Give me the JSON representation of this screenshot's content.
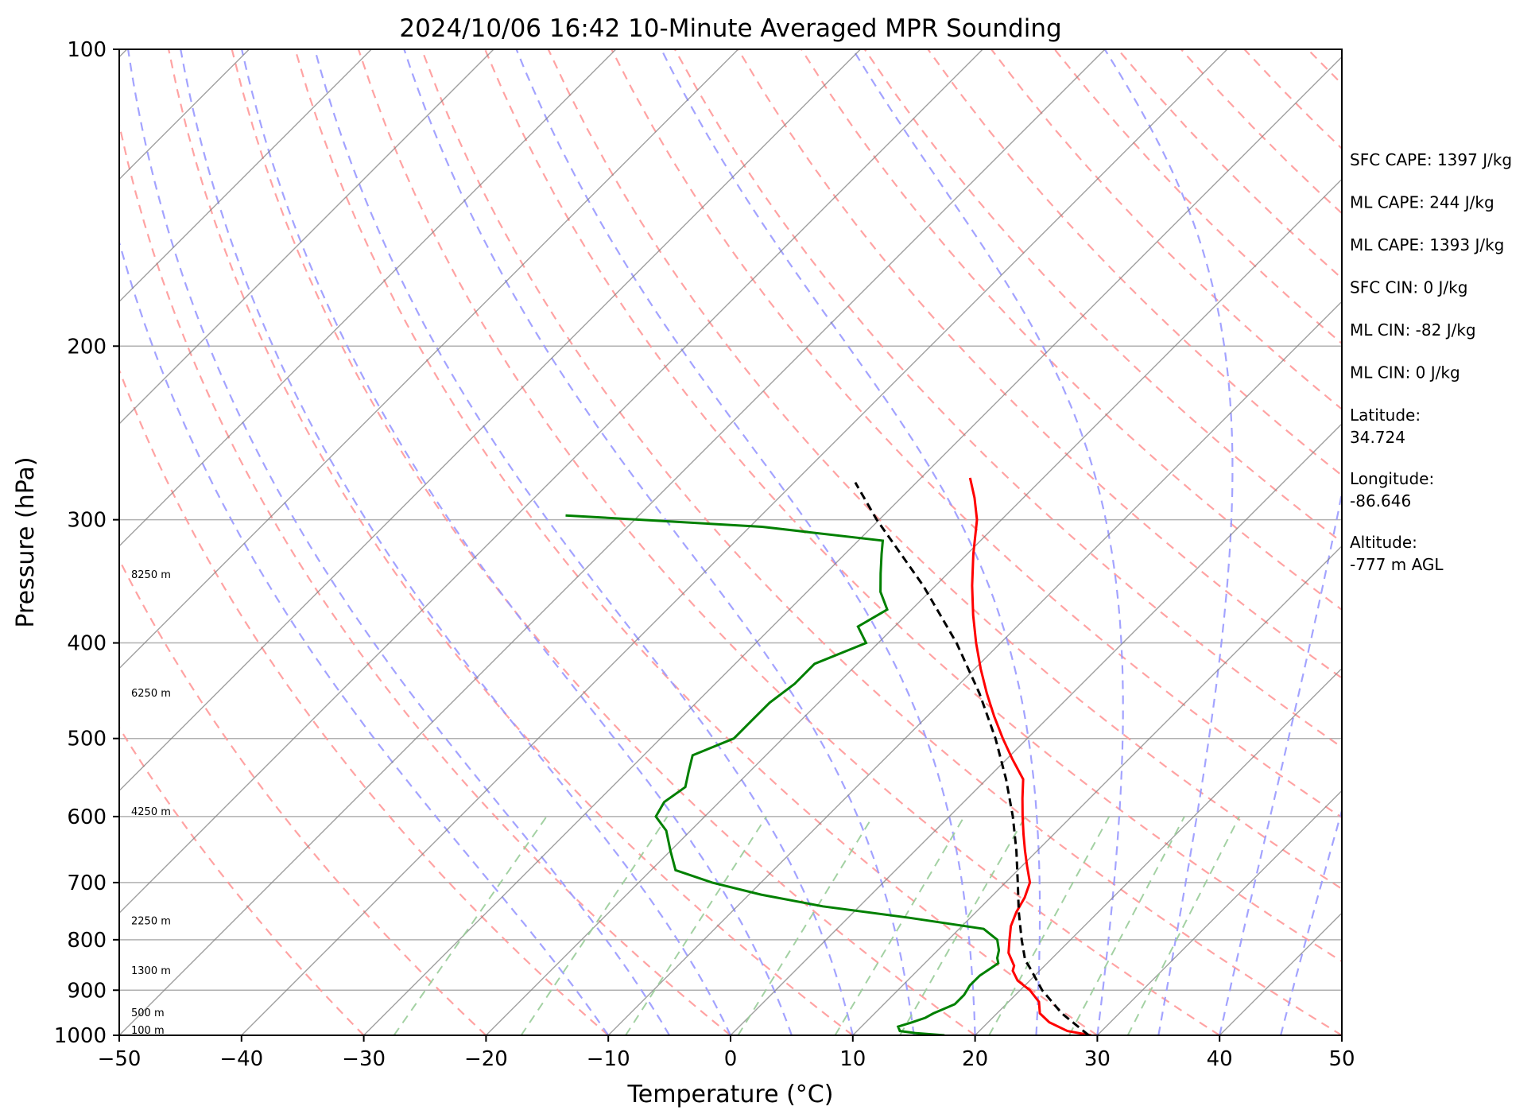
{
  "chart_data": {
    "type": "line",
    "title": "2024/10/06 16:42 10-Minute Averaged MPR Sounding",
    "xlabel": "Temperature (°C)",
    "ylabel": "Pressure (hPa)",
    "xlim": [
      -50,
      50
    ],
    "ylim": [
      1000,
      100
    ],
    "y_scale": "log",
    "x_ticks": [
      -50,
      -40,
      -30,
      -20,
      -10,
      0,
      10,
      20,
      30,
      40,
      50
    ],
    "x_tick_labels": [
      "−50",
      "−40",
      "−30",
      "−20",
      "−10",
      "0",
      "10",
      "20",
      "30",
      "40",
      "50"
    ],
    "y_ticks": [
      1000,
      900,
      800,
      700,
      600,
      500,
      400,
      300,
      200,
      100
    ],
    "y_tick_labels": [
      "1000",
      "900",
      "800",
      "700",
      "600",
      "500",
      "400",
      "300",
      "200",
      "100"
    ],
    "grid": true,
    "skew": "skew-T log-P",
    "colors": {
      "temperature": "#ff0000",
      "dewpoint": "#008000",
      "parcel": "#000000",
      "isotherms": "#808080",
      "dry_adiabats": "#ff9999",
      "moist_adiabats": "#9999ff",
      "mixing_ratio": "#99cc99",
      "gridlines": "#b0b0b0"
    },
    "series": [
      {
        "style": "solid-red",
        "points": [
          [
            1000,
            29.5
          ],
          [
            990,
            27.2
          ],
          [
            970,
            25.0
          ],
          [
            950,
            23.5
          ],
          [
            925,
            22.5
          ],
          [
            900,
            20.8
          ],
          [
            880,
            19.0
          ],
          [
            860,
            17.8
          ],
          [
            850,
            17.5
          ],
          [
            825,
            16.0
          ],
          [
            800,
            15.0
          ],
          [
            775,
            14.0
          ],
          [
            750,
            13.3
          ],
          [
            725,
            12.8
          ],
          [
            700,
            12.0
          ],
          [
            675,
            10.5
          ],
          [
            650,
            9.0
          ],
          [
            625,
            7.5
          ],
          [
            600,
            6.0
          ],
          [
            575,
            4.5
          ],
          [
            550,
            3.0
          ],
          [
            525,
            0.5
          ],
          [
            500,
            -2.0
          ],
          [
            475,
            -4.5
          ],
          [
            450,
            -7.0
          ],
          [
            425,
            -9.5
          ],
          [
            400,
            -12.0
          ],
          [
            375,
            -14.5
          ],
          [
            350,
            -17.0
          ],
          [
            325,
            -19.5
          ],
          [
            300,
            -22.0
          ],
          [
            285,
            -24.0
          ],
          [
            272,
            -26.0
          ]
        ]
      },
      {
        "style": "solid-green",
        "points": [
          [
            1000,
            17.5
          ],
          [
            995,
            15.0
          ],
          [
            990,
            13.5
          ],
          [
            980,
            13.0
          ],
          [
            970,
            13.8
          ],
          [
            960,
            14.5
          ],
          [
            950,
            14.8
          ],
          [
            930,
            15.8
          ],
          [
            910,
            15.8
          ],
          [
            890,
            15.5
          ],
          [
            870,
            15.5
          ],
          [
            855,
            15.8
          ],
          [
            845,
            16.0
          ],
          [
            835,
            15.5
          ],
          [
            820,
            15.0
          ],
          [
            800,
            14.0
          ],
          [
            780,
            12.0
          ],
          [
            760,
            5.0
          ],
          [
            740,
            -3.0
          ],
          [
            720,
            -9.0
          ],
          [
            700,
            -14.0
          ],
          [
            680,
            -18.0
          ],
          [
            650,
            -20.0
          ],
          [
            620,
            -22.0
          ],
          [
            600,
            -24.0
          ],
          [
            580,
            -24.5
          ],
          [
            560,
            -24.0
          ],
          [
            540,
            -25.0
          ],
          [
            520,
            -26.0
          ],
          [
            500,
            -24.0
          ],
          [
            480,
            -24.0
          ],
          [
            460,
            -24.0
          ],
          [
            440,
            -23.5
          ],
          [
            420,
            -23.5
          ],
          [
            400,
            -21.0
          ],
          [
            385,
            -23.0
          ],
          [
            370,
            -22.0
          ],
          [
            355,
            -24.0
          ],
          [
            340,
            -25.5
          ],
          [
            325,
            -27.0
          ],
          [
            315,
            -28.0
          ],
          [
            305,
            -39.0
          ],
          [
            297,
            -56.0
          ]
        ]
      },
      {
        "style": "dashed-black",
        "points": [
          [
            1000,
            29.3
          ],
          [
            950,
            25.3
          ],
          [
            900,
            21.8
          ],
          [
            850,
            18.7
          ],
          [
            840,
            18.0
          ],
          [
            800,
            16.0
          ],
          [
            750,
            13.5
          ],
          [
            700,
            11.0
          ],
          [
            650,
            8.3
          ],
          [
            600,
            5.2
          ],
          [
            550,
            1.6
          ],
          [
            500,
            -2.6
          ],
          [
            450,
            -7.6
          ],
          [
            400,
            -13.6
          ],
          [
            350,
            -21.0
          ],
          [
            300,
            -30.2
          ],
          [
            275,
            -35.0
          ]
        ]
      }
    ],
    "height_labels": [
      {
        "text": "100 m",
        "pressure": 1000
      },
      {
        "text": "500 m",
        "pressure": 960
      },
      {
        "text": "1300 m",
        "pressure": 870
      },
      {
        "text": "2250 m",
        "pressure": 775
      },
      {
        "text": "4250 m",
        "pressure": 600
      },
      {
        "text": "6250 m",
        "pressure": 455
      },
      {
        "text": "8250 m",
        "pressure": 345
      }
    ],
    "annotations": [
      "SFC CAPE: 1397 J/kg",
      "ML CAPE: 244 J/kg",
      "ML CAPE: 1393 J/kg",
      "SFC CIN: 0 J/kg",
      "ML CIN: -82 J/kg",
      "ML CIN: 0 J/kg",
      "Latitude:\n34.724",
      "Longitude:\n-86.646",
      "Altitude:\n-777 m AGL"
    ]
  }
}
